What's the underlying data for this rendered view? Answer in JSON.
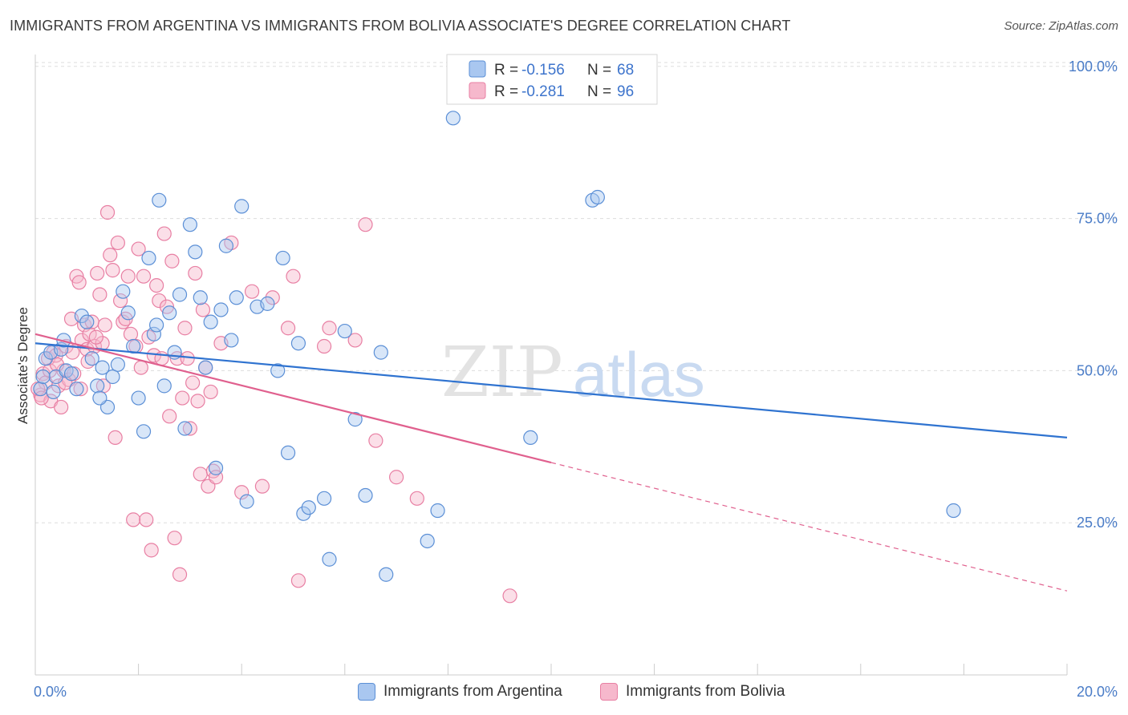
{
  "title": "IMMIGRANTS FROM ARGENTINA VS IMMIGRANTS FROM BOLIVIA ASSOCIATE'S DEGREE CORRELATION CHART",
  "source": "Source: ZipAtlas.com",
  "watermark": {
    "zip": "ZIP",
    "atlas": "atlas"
  },
  "legend": {
    "r_label": "R =",
    "n_label": "N =",
    "items": [
      {
        "series": "Immigrants from Argentina",
        "r": "-0.156",
        "n": "68"
      },
      {
        "series": "Immigrants from Bolivia",
        "r": "-0.281",
        "n": "96"
      }
    ]
  },
  "colors": {
    "argentina_fill": "#a9c7f0",
    "argentina_stroke": "#5b8fd6",
    "argentina_line": "#2f73d0",
    "bolivia_fill": "#f6b8cc",
    "bolivia_stroke": "#e87fa3",
    "bolivia_line": "#e0608e",
    "grid": "#dddddd",
    "tick_text": "#4a7cc7"
  },
  "chart_data": {
    "type": "scatter",
    "title": "IMMIGRANTS FROM ARGENTINA VS IMMIGRANTS FROM BOLIVIA ASSOCIATE'S DEGREE CORRELATION CHART",
    "xlabel": "",
    "ylabel": "Associate's Degree",
    "xlim": [
      0,
      20
    ],
    "ylim": [
      0,
      103
    ],
    "x_tick_labels": [
      "0.0%",
      "20.0%"
    ],
    "y_ticks": [
      25,
      50,
      75,
      100
    ],
    "y_tick_labels": [
      "25.0%",
      "50.0%",
      "75.0%",
      "100.0%"
    ],
    "series": [
      {
        "name": "Immigrants from Argentina",
        "trend": {
          "x0": 0,
          "y0": 54.5,
          "x1": 20,
          "y1": 39.0,
          "solid_until": 20
        },
        "points": [
          [
            0.1,
            47
          ],
          [
            0.2,
            52
          ],
          [
            0.3,
            53
          ],
          [
            0.4,
            49
          ],
          [
            0.5,
            53.5
          ],
          [
            0.6,
            50
          ],
          [
            0.7,
            49.5
          ],
          [
            0.8,
            47
          ],
          [
            0.9,
            59
          ],
          [
            1.0,
            58
          ],
          [
            1.1,
            52
          ],
          [
            1.2,
            47.5
          ],
          [
            1.3,
            50.5
          ],
          [
            1.4,
            44
          ],
          [
            1.5,
            49
          ],
          [
            1.6,
            51
          ],
          [
            1.7,
            63
          ],
          [
            1.8,
            59.5
          ],
          [
            1.9,
            54
          ],
          [
            2.0,
            45.5
          ],
          [
            2.1,
            40
          ],
          [
            2.2,
            68.5
          ],
          [
            2.3,
            56
          ],
          [
            2.4,
            78
          ],
          [
            2.5,
            47.5
          ],
          [
            2.6,
            59.5
          ],
          [
            2.7,
            53
          ],
          [
            2.8,
            62.5
          ],
          [
            2.9,
            40.5
          ],
          [
            3.0,
            74
          ],
          [
            3.1,
            69.5
          ],
          [
            3.2,
            62
          ],
          [
            3.3,
            50.5
          ],
          [
            3.4,
            58
          ],
          [
            3.5,
            34
          ],
          [
            3.6,
            60
          ],
          [
            3.7,
            70.5
          ],
          [
            3.8,
            55
          ],
          [
            3.9,
            62
          ],
          [
            4.0,
            77
          ],
          [
            4.1,
            28.5
          ],
          [
            4.3,
            60.5
          ],
          [
            4.5,
            61
          ],
          [
            4.7,
            50
          ],
          [
            4.8,
            68.5
          ],
          [
            4.9,
            36.5
          ],
          [
            5.1,
            54.5
          ],
          [
            5.2,
            26.5
          ],
          [
            5.3,
            27.5
          ],
          [
            5.6,
            29
          ],
          [
            5.7,
            19
          ],
          [
            6.0,
            56.5
          ],
          [
            6.2,
            42
          ],
          [
            6.4,
            29.5
          ],
          [
            6.7,
            53
          ],
          [
            6.8,
            16.5
          ],
          [
            7.6,
            22
          ],
          [
            7.8,
            27
          ],
          [
            8.1,
            91.5
          ],
          [
            9.6,
            39
          ],
          [
            10.8,
            78
          ],
          [
            10.9,
            78.5
          ],
          [
            17.8,
            27
          ],
          [
            0.15,
            49
          ],
          [
            0.35,
            46.5
          ],
          [
            0.55,
            55
          ],
          [
            1.25,
            45.5
          ],
          [
            2.35,
            57.5
          ]
        ]
      },
      {
        "name": "Immigrants from Bolivia",
        "trend": {
          "x0": 0,
          "y0": 56.0,
          "x1": 20,
          "y1": 13.8,
          "solid_until": 10
        },
        "points": [
          [
            0.1,
            46
          ],
          [
            0.15,
            49.5
          ],
          [
            0.2,
            48
          ],
          [
            0.25,
            52
          ],
          [
            0.3,
            45
          ],
          [
            0.35,
            53
          ],
          [
            0.4,
            52.5
          ],
          [
            0.45,
            47.5
          ],
          [
            0.5,
            44
          ],
          [
            0.55,
            50
          ],
          [
            0.6,
            54
          ],
          [
            0.65,
            48.5
          ],
          [
            0.7,
            58.5
          ],
          [
            0.75,
            49.5
          ],
          [
            0.8,
            65.5
          ],
          [
            0.85,
            64.5
          ],
          [
            0.9,
            55
          ],
          [
            0.95,
            57.5
          ],
          [
            1.0,
            53.5
          ],
          [
            1.05,
            56
          ],
          [
            1.1,
            58
          ],
          [
            1.15,
            54
          ],
          [
            1.2,
            66
          ],
          [
            1.25,
            62.5
          ],
          [
            1.3,
            54.5
          ],
          [
            1.35,
            57.5
          ],
          [
            1.4,
            76
          ],
          [
            1.45,
            69
          ],
          [
            1.5,
            66.5
          ],
          [
            1.55,
            39
          ],
          [
            1.6,
            71
          ],
          [
            1.65,
            61.5
          ],
          [
            1.7,
            58
          ],
          [
            1.75,
            58.5
          ],
          [
            1.8,
            65.5
          ],
          [
            1.85,
            56
          ],
          [
            1.9,
            25.5
          ],
          [
            1.95,
            54
          ],
          [
            2.0,
            70
          ],
          [
            2.05,
            50.5
          ],
          [
            2.1,
            65.5
          ],
          [
            2.15,
            25.5
          ],
          [
            2.2,
            55.5
          ],
          [
            2.25,
            20.5
          ],
          [
            2.3,
            52.5
          ],
          [
            2.35,
            64
          ],
          [
            2.4,
            61.5
          ],
          [
            2.45,
            52
          ],
          [
            2.5,
            72.5
          ],
          [
            2.55,
            60.5
          ],
          [
            2.6,
            42.5
          ],
          [
            2.65,
            68
          ],
          [
            2.7,
            22.5
          ],
          [
            2.75,
            52
          ],
          [
            2.8,
            16.5
          ],
          [
            2.85,
            45.5
          ],
          [
            2.9,
            57
          ],
          [
            2.95,
            52
          ],
          [
            3.0,
            40.5
          ],
          [
            3.05,
            48
          ],
          [
            3.1,
            66
          ],
          [
            3.15,
            45
          ],
          [
            3.2,
            33
          ],
          [
            3.25,
            60
          ],
          [
            3.3,
            50.5
          ],
          [
            3.35,
            31
          ],
          [
            3.4,
            46.5
          ],
          [
            3.45,
            33.5
          ],
          [
            3.5,
            32.5
          ],
          [
            3.6,
            54.5
          ],
          [
            3.8,
            71
          ],
          [
            4.0,
            30
          ],
          [
            4.2,
            63
          ],
          [
            4.4,
            31
          ],
          [
            4.6,
            62
          ],
          [
            4.9,
            57
          ],
          [
            5.0,
            65.5
          ],
          [
            5.1,
            15.5
          ],
          [
            5.6,
            54
          ],
          [
            5.7,
            57
          ],
          [
            6.2,
            55
          ],
          [
            6.4,
            74
          ],
          [
            6.6,
            38.5
          ],
          [
            7.0,
            32.5
          ],
          [
            7.4,
            29
          ],
          [
            9.2,
            13
          ],
          [
            0.05,
            47
          ],
          [
            0.12,
            45.5
          ],
          [
            0.28,
            50
          ],
          [
            0.42,
            51
          ],
          [
            0.58,
            48
          ],
          [
            0.72,
            53
          ],
          [
            0.88,
            47
          ],
          [
            1.02,
            51.5
          ],
          [
            1.18,
            55.5
          ],
          [
            1.32,
            47.5
          ]
        ]
      }
    ]
  }
}
